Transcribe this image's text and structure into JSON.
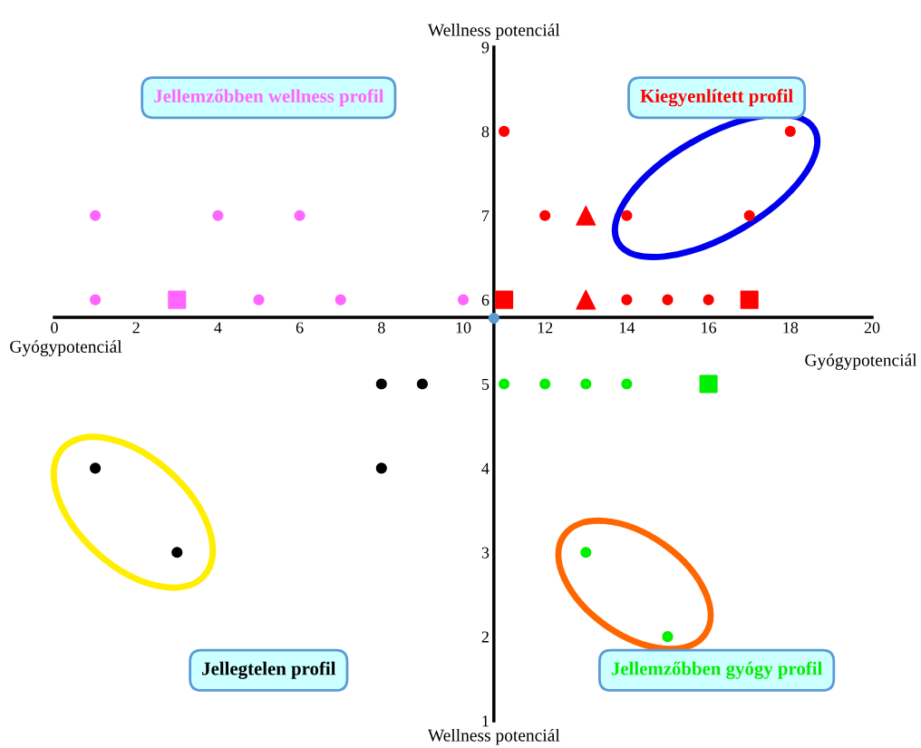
{
  "chart_data": {
    "type": "scatter",
    "xlabel": "Gyógypotenciál",
    "ylabel": "Wellness potenciál",
    "xlim": [
      0,
      20
    ],
    "ylim": [
      1,
      9
    ],
    "xticks": [
      0,
      2,
      4,
      6,
      8,
      10,
      12,
      14,
      16,
      18,
      20
    ],
    "yticks": [
      1,
      2,
      3,
      4,
      5,
      6,
      7,
      8,
      9
    ],
    "grid": false,
    "legend": false,
    "annotations": [
      "Jellemzőbben wellness profil",
      "Kiegyenlített profil",
      "Jellegtelen profil",
      "Jellemzőbben gyógy profil"
    ],
    "series": [
      {
        "color": "#ff66ff",
        "marker": "circle",
        "x": [
          1,
          4,
          6,
          1,
          5,
          7,
          10
        ],
        "values": [
          7,
          7,
          7,
          6,
          6,
          6,
          6
        ]
      },
      {
        "color": "#ff0000",
        "marker": "circle",
        "x": [
          11,
          18,
          12,
          14,
          17,
          14,
          15,
          16
        ],
        "values": [
          8,
          8,
          7,
          7,
          7,
          6,
          6,
          6
        ]
      },
      {
        "color": "#000000",
        "marker": "circle",
        "x": [
          8,
          9,
          1,
          8,
          3
        ],
        "values": [
          5,
          5,
          4,
          4,
          3
        ]
      },
      {
        "color": "#00ee00",
        "marker": "circle",
        "x": [
          11,
          12,
          13,
          14,
          13,
          15
        ],
        "values": [
          5,
          5,
          5,
          5,
          3,
          2
        ]
      },
      {
        "color": "#ff66ff",
        "marker": "square",
        "x": [
          3
        ],
        "values": [
          6
        ]
      },
      {
        "color": "#ff0000",
        "marker": "square",
        "x": [
          11,
          17
        ],
        "values": [
          6,
          6
        ]
      },
      {
        "color": "#ff0000",
        "marker": "triangle",
        "x": [
          13,
          13
        ],
        "values": [
          7,
          6
        ]
      },
      {
        "color": "#00ee00",
        "marker": "square",
        "x": [
          16
        ],
        "values": [
          5
        ]
      },
      {
        "color": "#5b9bd5",
        "marker": "circle",
        "x": [
          10.75
        ],
        "values": [
          5.78
        ]
      }
    ]
  }
}
